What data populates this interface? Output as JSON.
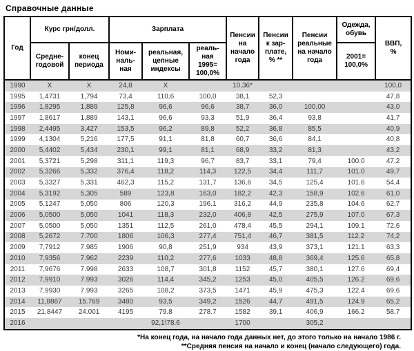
{
  "title": "Справочные данные",
  "table": {
    "header": {
      "year": "Год",
      "rate_group": "Курс грн/долл.",
      "rate_avg": "Средне-\nгодовой",
      "rate_eop": "конец\nпериода",
      "salary_group": "Зарплата",
      "salary_nominal": "Номи-\nналь-\nная",
      "salary_real_chain": "реальная,\nцепные\nиндексы",
      "salary_real_1995": "реаль-\nная\n1995=\n100,0%",
      "pensions_start": "Пенсии\nна\nначало\nгода",
      "pensions_to_salary": "Пенсии\nк зар-\nплате,\n% **",
      "pensions_real": "Пенсии\nреальные\nна начало\nгода",
      "clothing_group": "Одежда,\nобувь",
      "clothing_base": "2001=\n100,0%",
      "gdp": "ВВП,\n%"
    },
    "rows": [
      [
        "1990",
        "X",
        "X",
        "24,8",
        "X",
        "",
        "10,36*",
        "",
        "",
        "",
        "100,0"
      ],
      [
        "1995",
        "1,4731",
        "1,794",
        "73,4",
        "110,6",
        "100,0",
        "38,1",
        "52,3",
        "",
        "",
        "47,8"
      ],
      [
        "1996",
        "1,8295",
        "1,889",
        "125,8",
        "96,6",
        "96,6",
        "38,7",
        "36,0",
        "100,00",
        "",
        "43,0"
      ],
      [
        "1997",
        "1,8617",
        "1,889",
        "143,1",
        "96,6",
        "93,3",
        "51,9",
        "36,4",
        "93,8",
        "",
        "41,7"
      ],
      [
        "1998",
        "2,4495",
        "3,427",
        "153,5",
        "96,2",
        "89,8",
        "52,2",
        "36,8",
        "85,5",
        "",
        "40,9"
      ],
      [
        "1999",
        "4,1304",
        "5,216",
        "177,5",
        "91,1",
        "81,8",
        "60,7",
        "36,6",
        "84,1",
        "",
        "40,8"
      ],
      [
        "2000",
        "5,4402",
        "5,434",
        "230,1",
        "99,1",
        "81,1",
        "68,9",
        "33,2",
        "81,3",
        "",
        "43,2"
      ],
      [
        "2001",
        "5,3721",
        "5,298",
        "311,1",
        "119,3",
        "96,7",
        "83,7",
        "33,1",
        "79,4",
        "100.0",
        "47,2"
      ],
      [
        "2002",
        "5,3266",
        "5,332",
        "376,4",
        "118,2",
        "114,3",
        "122,5",
        "34,4",
        "111,7",
        "101.0",
        "49,7"
      ],
      [
        "2003",
        "5,3327",
        "5,331",
        "462,3",
        "115,2",
        "131,7",
        "136,6",
        "34,5",
        "125,4",
        "101.6",
        "54,4"
      ],
      [
        "2004",
        "5,3192",
        "5,305",
        "589",
        "123,8",
        "163,0",
        "182,2",
        "42,3",
        "158,9",
        "102.6",
        "61,0"
      ],
      [
        "2005",
        "5,1247",
        "5,050",
        "806",
        "120,3",
        "196,1",
        "316,2",
        "44,9",
        "235,8",
        "104.6",
        "62,7"
      ],
      [
        "2006",
        "5,0500",
        "5,050",
        "1041",
        "118,3",
        "232,0",
        "406,8",
        "42,5",
        "275,9",
        "107.0",
        "67,3"
      ],
      [
        "2007",
        "5,0500",
        "5,050",
        "1351",
        "112,5",
        "261,0",
        "478,4",
        "45,5",
        "294,1",
        "109.1",
        "72,6"
      ],
      [
        "2008",
        "5,2672",
        "7.700",
        "1806",
        "106,3",
        "277,4",
        "751,4",
        "46,7",
        "381,5",
        "112.2",
        "74,2"
      ],
      [
        "2009",
        "7,7912",
        "7.985",
        "1906",
        "90,8",
        "251,9",
        "934",
        "43,9",
        "373,1",
        "121.1",
        "63,3"
      ],
      [
        "2010",
        "7,9356",
        "7.962",
        "2239",
        "110,2",
        "277,6",
        "1033",
        "48,8",
        "369,4",
        "125.6",
        "65,8"
      ],
      [
        "2011",
        "7,9676",
        "7.998",
        "2633",
        "108,7",
        "301,8",
        "1152",
        "45,7",
        "380,1",
        "127.6",
        "69,4"
      ],
      [
        "2012",
        "7,9910",
        "7.993",
        "3026",
        "114,4",
        "345,2",
        "1253",
        "45,0",
        "405,5",
        "126.2",
        "69,6"
      ],
      [
        "2013",
        "7,9930",
        "7.993",
        "3265",
        "108,2",
        "373,5",
        "1471",
        "45,9",
        "475,3",
        "122.4",
        "69,6"
      ],
      [
        "2014",
        "11,8867",
        "15.769",
        "3480",
        "93,5",
        "349,2",
        "1526",
        "44,7",
        "491,5",
        "124.9",
        "65,2"
      ],
      [
        "2015",
        "21,8447",
        "24.001",
        "4195",
        "79.8",
        "278.7",
        "1582",
        "39,1",
        "406,9",
        "166.2",
        "58,7"
      ],
      [
        "2016",
        "",
        "",
        "",
        "92,1\\78.6",
        "",
        "1700",
        "",
        "305,2",
        "",
        ""
      ]
    ]
  },
  "footnotes": [
    "*На конец года, на начало года данных нет, до этого только на начало 1986 г.",
    "**Средняя пенсия на начало и конец (начало следующего) года."
  ]
}
